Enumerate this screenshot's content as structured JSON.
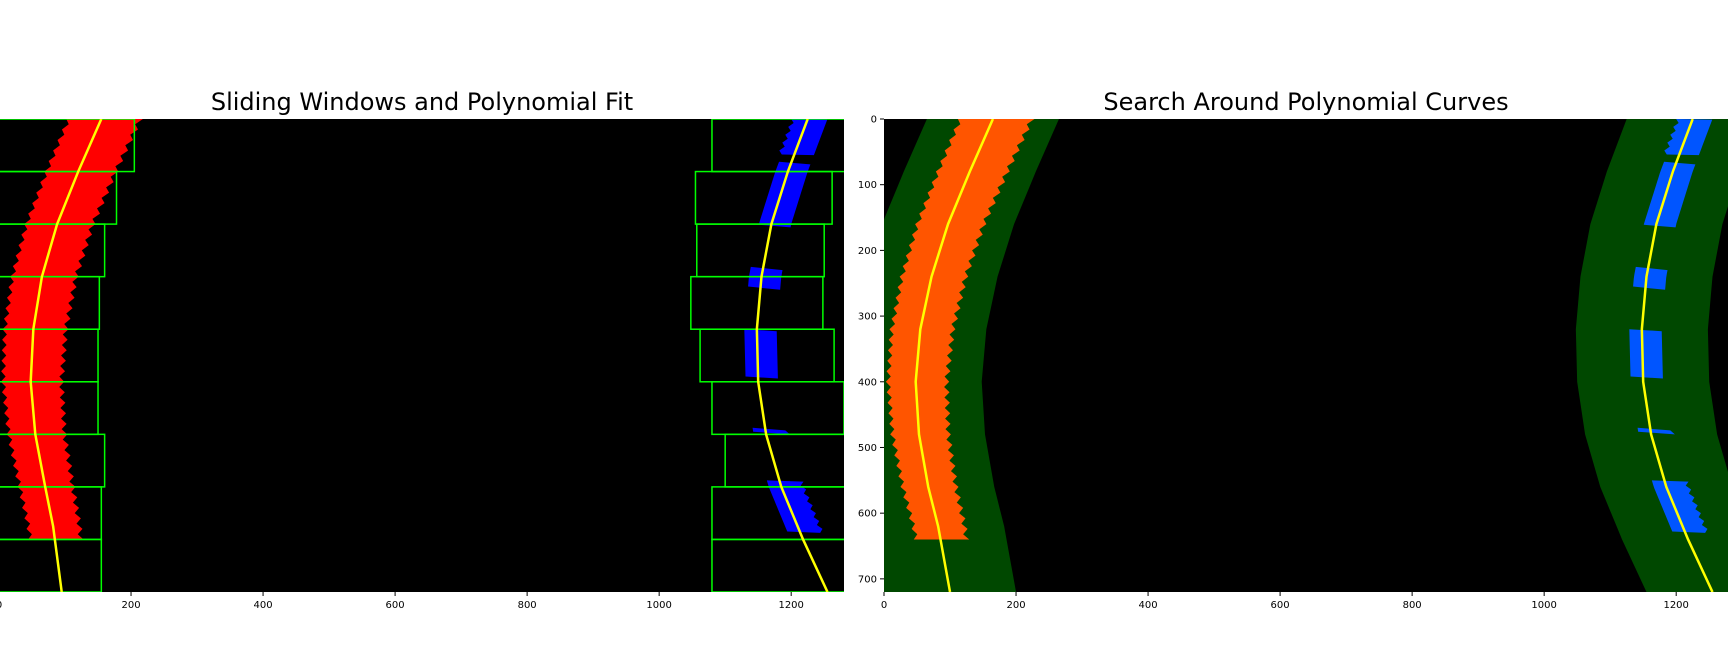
{
  "chart_data": [
    {
      "type": "image",
      "title": "Sliding Windows and Polynomial Fit",
      "xlim": [
        0,
        1280
      ],
      "ylim": [
        720,
        0
      ],
      "xticks": [
        0,
        200,
        400,
        600,
        800,
        1000,
        1200
      ],
      "yticks": [],
      "colors": {
        "left_pixels": "#ff0000",
        "right_pixels": "#0000ff",
        "windows": "#00ff00",
        "fit": "#ffff00",
        "background": "#000000"
      },
      "windows": {
        "left": [
          [
            0,
            0,
            205,
            80
          ],
          [
            0,
            80,
            178,
            160
          ],
          [
            0,
            160,
            160,
            240
          ],
          [
            0,
            240,
            152,
            320
          ],
          [
            0,
            320,
            150,
            400
          ],
          [
            0,
            400,
            150,
            480
          ],
          [
            0,
            480,
            160,
            560
          ],
          [
            0,
            560,
            155,
            640
          ],
          [
            0,
            640,
            155,
            720
          ]
        ],
        "right": [
          [
            1080,
            0,
            1285,
            80
          ],
          [
            1055,
            80,
            1262,
            160
          ],
          [
            1057,
            160,
            1250,
            240
          ],
          [
            1048,
            240,
            1248,
            320
          ],
          [
            1062,
            320,
            1265,
            400
          ],
          [
            1080,
            400,
            1280,
            480
          ],
          [
            1100,
            480,
            1290,
            560
          ],
          [
            1080,
            560,
            1285,
            640
          ],
          [
            1080,
            640,
            1285,
            720
          ]
        ]
      },
      "fit": {
        "left": [
          [
            155,
            0
          ],
          [
            120,
            80
          ],
          [
            88,
            160
          ],
          [
            65,
            240
          ],
          [
            52,
            320
          ],
          [
            48,
            400
          ],
          [
            55,
            480
          ],
          [
            70,
            560
          ],
          [
            82,
            620
          ],
          [
            95,
            720
          ]
        ],
        "right": [
          [
            1225,
            0
          ],
          [
            1195,
            80
          ],
          [
            1170,
            160
          ],
          [
            1155,
            240
          ],
          [
            1148,
            320
          ],
          [
            1150,
            400
          ],
          [
            1162,
            480
          ],
          [
            1185,
            560
          ],
          [
            1218,
            640
          ],
          [
            1255,
            720
          ]
        ]
      }
    },
    {
      "type": "image",
      "title": "Search Around Polynomial Curves",
      "xlim": [
        0,
        1280
      ],
      "ylim": [
        720,
        0
      ],
      "xticks": [
        0,
        200,
        400,
        600,
        800,
        1000,
        1200
      ],
      "yticks": [
        0,
        100,
        200,
        300,
        400,
        500,
        600,
        700
      ],
      "colors": {
        "left_pixels": "#ff5500",
        "right_pixels": "#0055ff",
        "search_band": "#004800",
        "fit": "#ffff00",
        "background": "#000000"
      },
      "band_margin": 100,
      "fit": {
        "left": [
          [
            165,
            0
          ],
          [
            130,
            80
          ],
          [
            97,
            160
          ],
          [
            72,
            240
          ],
          [
            55,
            320
          ],
          [
            48,
            400
          ],
          [
            53,
            480
          ],
          [
            67,
            560
          ],
          [
            82,
            620
          ],
          [
            100,
            720
          ]
        ],
        "right": [
          [
            1225,
            0
          ],
          [
            1195,
            80
          ],
          [
            1170,
            160
          ],
          [
            1155,
            240
          ],
          [
            1148,
            320
          ],
          [
            1150,
            400
          ],
          [
            1162,
            480
          ],
          [
            1185,
            560
          ],
          [
            1218,
            640
          ],
          [
            1255,
            720
          ]
        ]
      }
    }
  ]
}
